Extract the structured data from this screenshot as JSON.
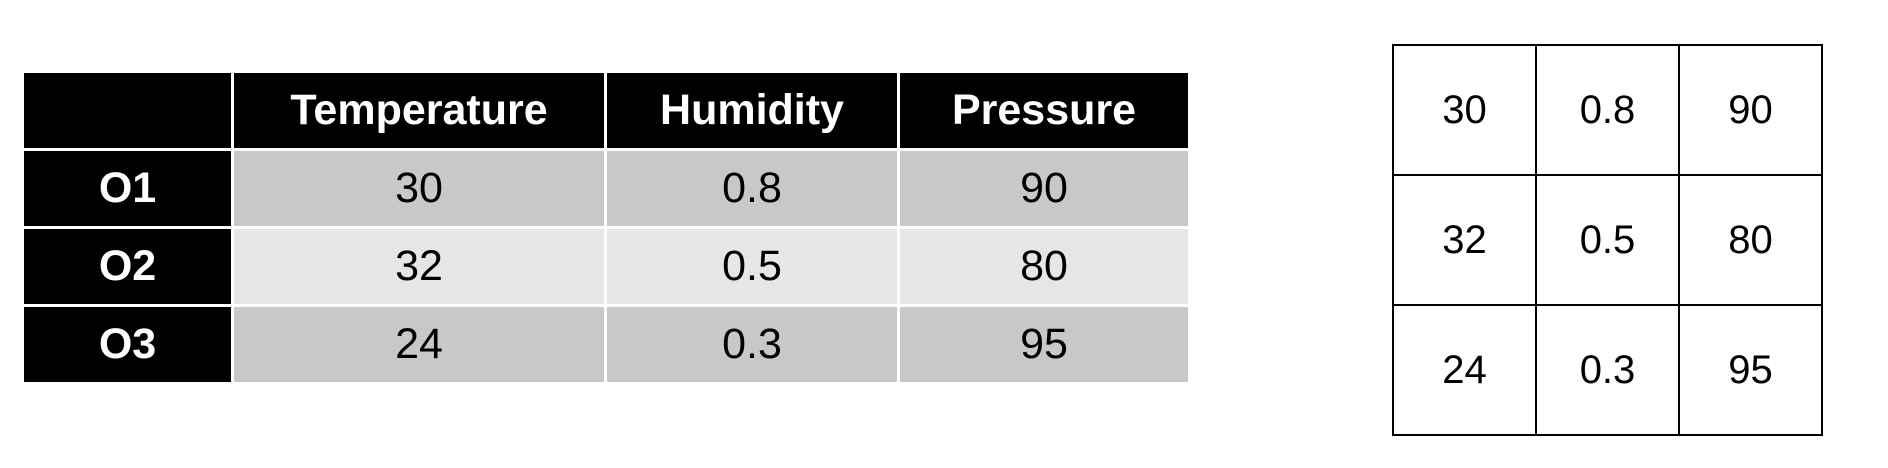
{
  "observation_table": {
    "corner": "",
    "headers": [
      "Temperature",
      "Humidity",
      "Pressure"
    ],
    "rows": [
      {
        "label": "O1",
        "values": [
          "30",
          "0.8",
          "90"
        ]
      },
      {
        "label": "O2",
        "values": [
          "32",
          "0.5",
          "80"
        ]
      },
      {
        "label": "O3",
        "values": [
          "24",
          "0.3",
          "95"
        ]
      }
    ]
  },
  "matrix": {
    "rows": [
      [
        "30",
        "0.8",
        "90"
      ],
      [
        "32",
        "0.5",
        "80"
      ],
      [
        "24",
        "0.3",
        "95"
      ]
    ]
  },
  "colors": {
    "header_bg": "#000000",
    "header_text": "#ffffff",
    "row_odd_bg": "#c8c8c8",
    "row_even_bg": "#e6e6e6",
    "matrix_border": "#000000"
  }
}
